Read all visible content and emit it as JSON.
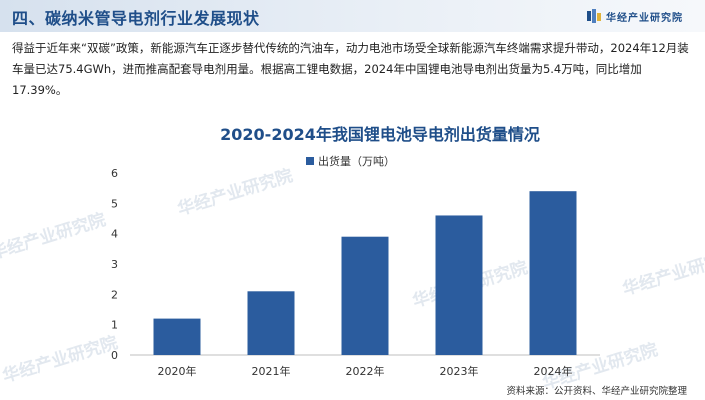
{
  "header": {
    "title": "四、碳纳米管导电剂行业发展现状",
    "brand": "华经产业研究院"
  },
  "intro": {
    "text": "得益于近年来“双碳”政策，新能源汽车正逐步替代传统的汽油车，动力电池市场受全球新能源汽车终端需求提升带动，2024年12月装车量已达75.4GWh，进而推高配套导电剂用量。根据高工锂电数据，2024年中国锂电池导电剂出货量为5.4万吨，同比增加17.39%。"
  },
  "watermark": "华经产业研究院",
  "colors": {
    "accent": "#1f4e89",
    "bar": "#2b5c9e",
    "header_bg": "#dce5f0"
  },
  "chart_data": {
    "type": "bar",
    "title": "2020-2024年我国锂电池导电剂出货量情况",
    "categories": [
      "2020年",
      "2021年",
      "2022年",
      "2023年",
      "2024年"
    ],
    "series": [
      {
        "name": "出货量（万吨）",
        "values": [
          1.2,
          2.1,
          3.9,
          4.6,
          5.4
        ]
      }
    ],
    "yticks": [
      "0",
      "1",
      "2",
      "3",
      "4",
      "5",
      "6"
    ],
    "ylim": [
      0,
      6
    ],
    "grid": false,
    "legend": "top-center"
  },
  "source": "资料来源：公开资料、华经产业研究院整理"
}
